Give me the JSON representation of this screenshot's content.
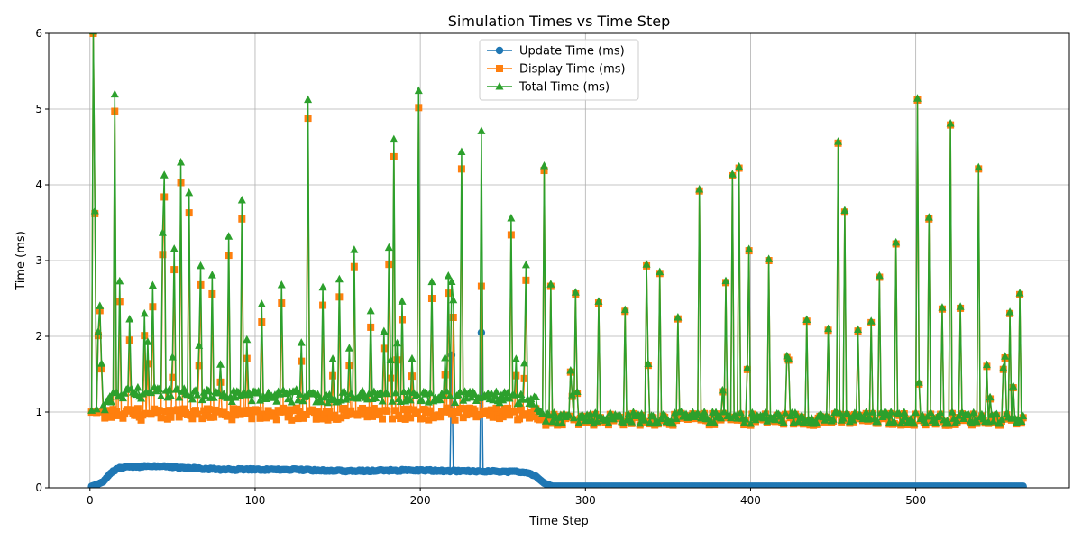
{
  "chart_data": {
    "type": "line",
    "title": "Simulation Times vs Time Step",
    "xlabel": "Time Step",
    "ylabel": "Time (ms)",
    "xlim": [
      -25,
      593
    ],
    "ylim": [
      0,
      6
    ],
    "xticks": [
      0,
      100,
      200,
      300,
      400,
      500
    ],
    "yticks": [
      0,
      1,
      2,
      3,
      4,
      5,
      6
    ],
    "grid": true,
    "legend_position": "upper-center",
    "series": [
      {
        "name": "Update Time (ms)",
        "color": "#1f77b4",
        "marker": "circle",
        "control_points": [
          [
            1,
            0.02
          ],
          [
            5,
            0.05
          ],
          [
            8,
            0.08
          ],
          [
            12,
            0.18
          ],
          [
            16,
            0.25
          ],
          [
            22,
            0.28
          ],
          [
            30,
            0.28
          ],
          [
            40,
            0.29
          ],
          [
            50,
            0.27
          ],
          [
            60,
            0.26
          ],
          [
            70,
            0.25
          ],
          [
            80,
            0.24
          ],
          [
            100,
            0.24
          ],
          [
            120,
            0.24
          ],
          [
            140,
            0.23
          ],
          [
            160,
            0.22
          ],
          [
            180,
            0.23
          ],
          [
            200,
            0.23
          ],
          [
            218,
            0.22
          ],
          [
            219,
            1.75
          ],
          [
            220,
            0.22
          ],
          [
            236,
            0.22
          ],
          [
            237,
            2.05
          ],
          [
            238,
            0.22
          ],
          [
            260,
            0.21
          ],
          [
            265,
            0.2
          ],
          [
            270,
            0.15
          ],
          [
            275,
            0.06
          ],
          [
            280,
            0.02
          ],
          [
            290,
            0.02
          ],
          [
            565,
            0.02
          ]
        ]
      },
      {
        "name": "Display Time (ms)",
        "color": "#ff7f0e",
        "marker": "square",
        "peaks": [
          [
            2,
            6.0
          ],
          [
            3,
            3.62
          ],
          [
            5,
            2.01
          ],
          [
            6,
            2.34
          ],
          [
            7,
            1.57
          ],
          [
            15,
            4.97
          ],
          [
            18,
            2.46
          ],
          [
            24,
            1.95
          ],
          [
            33,
            2.01
          ],
          [
            38,
            2.39
          ],
          [
            44,
            3.08
          ],
          [
            45,
            3.84
          ],
          [
            51,
            2.88
          ],
          [
            55,
            4.03
          ],
          [
            60,
            3.63
          ],
          [
            67,
            2.68
          ],
          [
            74,
            2.56
          ],
          [
            84,
            3.07
          ],
          [
            92,
            3.55
          ],
          [
            104,
            2.19
          ],
          [
            116,
            2.44
          ],
          [
            132,
            4.88
          ],
          [
            141,
            2.41
          ],
          [
            151,
            2.52
          ],
          [
            160,
            2.92
          ],
          [
            170,
            2.12
          ],
          [
            181,
            2.95
          ],
          [
            184,
            4.37
          ],
          [
            189,
            2.22
          ],
          [
            199,
            5.02
          ],
          [
            207,
            2.5
          ],
          [
            217,
            2.57
          ],
          [
            220,
            2.25
          ],
          [
            225,
            4.21
          ],
          [
            237,
            2.66
          ],
          [
            255,
            3.34
          ],
          [
            264,
            2.74
          ],
          [
            275,
            4.19
          ],
          [
            279,
            2.66
          ],
          [
            294,
            2.56
          ],
          [
            308,
            2.44
          ],
          [
            324,
            2.33
          ],
          [
            337,
            2.93
          ],
          [
            345,
            2.83
          ],
          [
            356,
            2.23
          ],
          [
            369,
            3.92
          ],
          [
            385,
            2.71
          ],
          [
            389,
            4.12
          ],
          [
            393,
            4.22
          ],
          [
            399,
            3.13
          ],
          [
            411,
            3.0
          ],
          [
            434,
            2.2
          ],
          [
            447,
            2.08
          ],
          [
            453,
            4.55
          ],
          [
            457,
            3.64
          ],
          [
            465,
            2.07
          ],
          [
            473,
            2.18
          ],
          [
            478,
            2.78
          ],
          [
            488,
            3.22
          ],
          [
            501,
            5.12
          ],
          [
            508,
            3.55
          ],
          [
            516,
            2.36
          ],
          [
            521,
            4.79
          ],
          [
            527,
            2.37
          ],
          [
            538,
            4.21
          ],
          [
            557,
            2.3
          ],
          [
            563,
            2.55
          ]
        ],
        "baseline": {
          "before_step_275": 0.95,
          "after_step_275": 0.88
        }
      },
      {
        "name": "Total Time (ms)",
        "color": "#2ca02c",
        "marker": "triangle",
        "relation": "Display Time + Update Time"
      }
    ]
  }
}
